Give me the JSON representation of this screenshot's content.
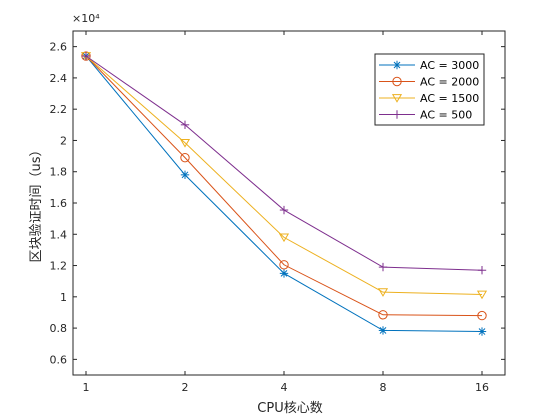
{
  "chart_data": {
    "type": "line",
    "categories": [
      "1",
      "2",
      "4",
      "8",
      "16"
    ],
    "xlabel": "CPU核心数",
    "ylabel": "区块验证时间（us）",
    "exponent_label": "×10⁴",
    "ylim": [
      0.5,
      2.7
    ],
    "yticks": [
      0.6,
      0.8,
      1,
      1.2,
      1.4,
      1.6,
      1.8,
      2,
      2.2,
      2.4,
      2.6
    ],
    "ytick_labels": [
      "0.6",
      "0.8",
      "1",
      "1.2",
      "1.4",
      "1.6",
      "1.8",
      "2",
      "2.2",
      "2.4",
      "2.6"
    ],
    "grid": false,
    "legend_position": "top-right",
    "series": [
      {
        "name": "AC = 3000",
        "values": [
          2.54,
          1.78,
          1.15,
          0.785,
          0.778
        ],
        "color": "#0072BD",
        "marker": "asterisk"
      },
      {
        "name": "AC = 2000",
        "values": [
          2.54,
          1.89,
          1.205,
          0.885,
          0.88
        ],
        "color": "#D95319",
        "marker": "circle"
      },
      {
        "name": "AC = 1500",
        "values": [
          2.54,
          1.985,
          1.38,
          1.03,
          1.015
        ],
        "color": "#EDB120",
        "marker": "triangle-down"
      },
      {
        "name": "AC = 500",
        "values": [
          2.54,
          2.1,
          1.555,
          1.19,
          1.17
        ],
        "color": "#7E2F8E",
        "marker": "plus"
      }
    ]
  }
}
